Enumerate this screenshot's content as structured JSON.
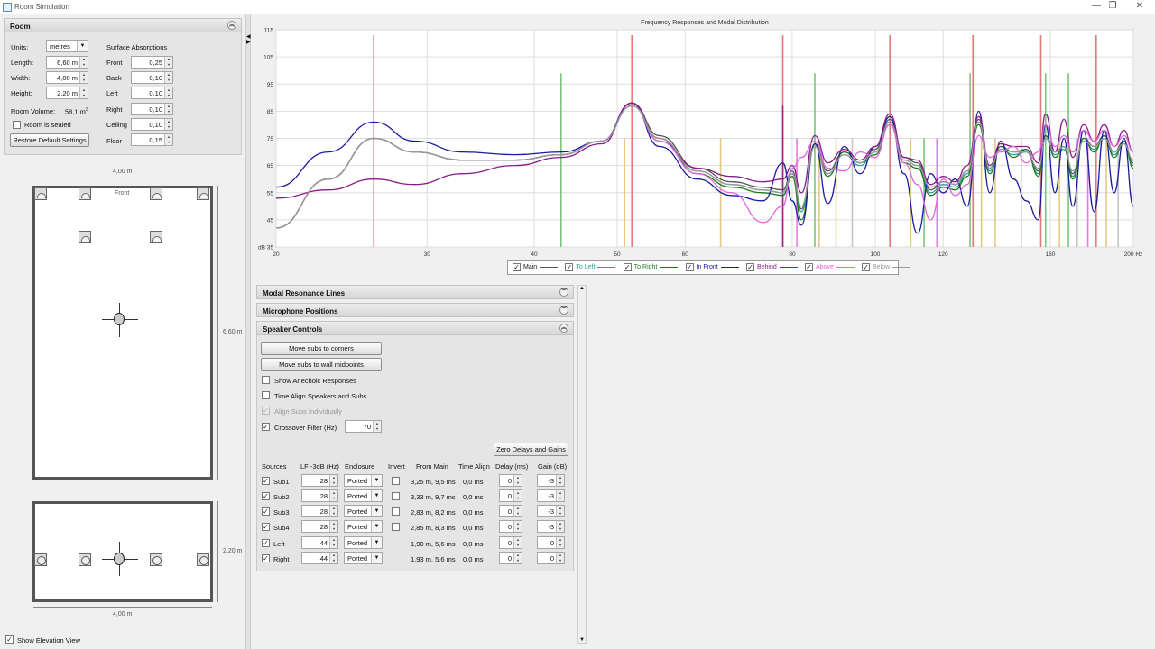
{
  "window": {
    "title": "Room Simulation",
    "controls": {
      "minimize": "—",
      "maximize": "❐",
      "close": "✕"
    }
  },
  "room_panel": {
    "title": "Room",
    "units_label": "Units:",
    "units_value": "metres",
    "length_label": "Length:",
    "length_value": "6,60 m",
    "width_label": "Width:",
    "width_value": "4,00 m",
    "height_label": "Height:",
    "height_value": "2,20 m",
    "volume_label": "Room Volume:",
    "volume_value": "58,1 m",
    "volume_unit_sup": "3",
    "sealed_label": "Room is sealed",
    "restore_button": "Restore Default Settings",
    "absorptions_title": "Surface Absorptions",
    "absorptions": [
      {
        "label": "Front",
        "value": "0,25"
      },
      {
        "label": "Back",
        "value": "0,10"
      },
      {
        "label": "Left",
        "value": "0,10"
      },
      {
        "label": "Right",
        "value": "0,10"
      },
      {
        "label": "Ceiling",
        "value": "0,10"
      },
      {
        "label": "Floor",
        "value": "0,15"
      }
    ]
  },
  "plan_view": {
    "width_label": "4,00 m",
    "length_label": "6,60 m",
    "front_label": "Front"
  },
  "elevation_view": {
    "height_label": "2,20 m",
    "width_label": "4,00 m"
  },
  "show_elevation": {
    "label": "Show Elevation View",
    "checked": true
  },
  "chart_data": {
    "type": "line",
    "title": "Frequency Responses and Modal Distribution",
    "x_scale": "log",
    "xlim": [
      20,
      200
    ],
    "ylim": [
      35,
      115
    ],
    "x_ticks": [
      "20",
      "30",
      "40",
      "50",
      "60",
      "80",
      "100",
      "120",
      "160",
      "200 Hz"
    ],
    "x_tick_values": [
      20,
      30,
      40,
      50,
      60,
      80,
      100,
      120,
      160,
      200
    ],
    "y_ticks": [
      "dB 35",
      "45",
      "55",
      "65",
      "75",
      "85",
      "95",
      "105",
      "115"
    ],
    "y_tick_values": [
      35,
      45,
      55,
      65,
      75,
      85,
      95,
      105,
      115
    ],
    "grid": true,
    "legend_placement": "bottom",
    "series": [
      {
        "name": "Main",
        "color": "#555555",
        "x": [
          20,
          23,
          26,
          29,
          33,
          38,
          43,
          48,
          52,
          56,
          62,
          68,
          74,
          78,
          80,
          82,
          85,
          88,
          92,
          96,
          100,
          104,
          108,
          112,
          116,
          120,
          124,
          128,
          132,
          136,
          140,
          145,
          150,
          155,
          158,
          162,
          166,
          170,
          175,
          180,
          185,
          190,
          195,
          200
        ],
        "y": [
          42,
          60,
          75,
          70,
          67,
          67,
          69,
          74,
          88,
          76,
          64,
          59,
          57,
          56,
          63,
          49,
          73,
          63,
          70,
          66,
          71,
          82,
          68,
          66,
          56,
          59,
          58,
          63,
          82,
          64,
          72,
          70,
          71,
          63,
          76,
          70,
          72,
          62,
          75,
          72,
          76,
          70,
          74,
          66
        ]
      },
      {
        "name": "To Left",
        "color": "#2aa198",
        "x": [
          20,
          23,
          26,
          29,
          33,
          38,
          43,
          48,
          52,
          56,
          62,
          68,
          74,
          78,
          80,
          82,
          85,
          88,
          92,
          96,
          100,
          104,
          108,
          112,
          116,
          120,
          124,
          128,
          132,
          136,
          140,
          145,
          150,
          155,
          158,
          162,
          166,
          170,
          175,
          180,
          185,
          190,
          195,
          200
        ],
        "y": [
          42,
          60,
          75,
          70,
          67,
          67,
          69,
          74,
          87,
          75,
          63,
          58,
          56,
          55,
          62,
          48,
          72,
          62,
          69,
          65,
          70,
          81,
          67,
          65,
          55,
          58,
          57,
          62,
          81,
          63,
          71,
          69,
          70,
          62,
          75,
          69,
          71,
          61,
          74,
          71,
          75,
          69,
          73,
          65
        ]
      },
      {
        "name": "To Right",
        "color": "#1f7a1f",
        "x": [
          20,
          23,
          26,
          29,
          33,
          38,
          43,
          48,
          52,
          56,
          62,
          68,
          74,
          78,
          80,
          82,
          85,
          88,
          92,
          96,
          100,
          104,
          108,
          112,
          116,
          120,
          124,
          128,
          132,
          136,
          140,
          145,
          150,
          155,
          158,
          162,
          166,
          170,
          175,
          180,
          185,
          190,
          195,
          200
        ],
        "y": [
          42,
          60,
          75,
          70,
          67,
          67,
          69,
          74,
          87,
          75,
          62,
          57,
          55,
          54,
          61,
          45,
          73,
          61,
          70,
          66,
          69,
          81,
          66,
          64,
          54,
          57,
          56,
          61,
          80,
          62,
          72,
          68,
          71,
          61,
          76,
          68,
          72,
          60,
          75,
          70,
          76,
          68,
          74,
          64
        ]
      },
      {
        "name": "In Front",
        "color": "#1a1aa0",
        "x": [
          20,
          23,
          26,
          29,
          33,
          38,
          43,
          48,
          52,
          56,
          62,
          68,
          74,
          78,
          80,
          82,
          85,
          88,
          92,
          96,
          100,
          104,
          108,
          112,
          116,
          120,
          124,
          128,
          132,
          136,
          140,
          145,
          150,
          155,
          158,
          162,
          166,
          170,
          175,
          180,
          185,
          190,
          195,
          200
        ],
        "y": [
          57,
          70,
          81,
          74,
          70,
          69,
          70,
          74,
          88,
          72,
          60,
          54,
          52,
          66,
          52,
          43,
          73,
          51,
          72,
          62,
          72,
          83,
          62,
          40,
          62,
          55,
          60,
          50,
          85,
          55,
          74,
          60,
          52,
          45,
          80,
          55,
          75,
          50,
          78,
          48,
          78,
          55,
          75,
          50
        ]
      },
      {
        "name": "Behind",
        "color": "#8b1a8b",
        "x": [
          20,
          23,
          26,
          29,
          33,
          38,
          43,
          48,
          52,
          56,
          62,
          68,
          74,
          78,
          80,
          82,
          85,
          88,
          92,
          96,
          100,
          104,
          108,
          112,
          116,
          120,
          124,
          128,
          132,
          136,
          140,
          145,
          150,
          155,
          158,
          162,
          166,
          170,
          175,
          180,
          185,
          190,
          195,
          200
        ],
        "y": [
          53,
          56,
          60,
          58,
          62,
          65,
          68,
          73,
          88,
          74,
          64,
          61,
          59,
          60,
          65,
          55,
          76,
          66,
          71,
          67,
          72,
          84,
          68,
          67,
          58,
          61,
          59,
          65,
          83,
          65,
          73,
          72,
          72,
          66,
          84,
          70,
          82,
          68,
          80,
          74,
          80,
          72,
          78,
          70
        ]
      },
      {
        "name": "Above",
        "color": "#e066e0",
        "x": [
          20,
          23,
          26,
          29,
          33,
          38,
          43,
          48,
          52,
          56,
          62,
          68,
          74,
          78,
          80,
          82,
          85,
          88,
          92,
          96,
          100,
          104,
          108,
          112,
          116,
          120,
          124,
          128,
          132,
          136,
          140,
          145,
          150,
          155,
          158,
          162,
          166,
          170,
          175,
          180,
          185,
          190,
          195,
          200
        ],
        "y": [
          42,
          60,
          75,
          70,
          67,
          67,
          69,
          74,
          87,
          74,
          62,
          55,
          44,
          50,
          64,
          68,
          74,
          64,
          63,
          70,
          68,
          80,
          66,
          58,
          45,
          60,
          54,
          58,
          76,
          68,
          70,
          72,
          66,
          70,
          80,
          72,
          76,
          70,
          78,
          74,
          78,
          72,
          76,
          70
        ]
      },
      {
        "name": "Below",
        "color": "#999999",
        "x": [
          20,
          23,
          26,
          29,
          33,
          38,
          43,
          48,
          52,
          56,
          62,
          68,
          74,
          78,
          80,
          82,
          85,
          88,
          92,
          96,
          100,
          104,
          108,
          112,
          116,
          120,
          124,
          128,
          132,
          136,
          140,
          145,
          150,
          155,
          158,
          162,
          166,
          170,
          175,
          180,
          185,
          190,
          195,
          200
        ],
        "y": [
          42,
          60,
          75,
          70,
          67,
          67,
          69,
          74,
          87,
          75,
          63,
          58,
          56,
          55,
          62,
          50,
          72,
          62,
          69,
          66,
          70,
          81,
          67,
          65,
          57,
          59,
          58,
          63,
          81,
          64,
          71,
          70,
          70,
          64,
          75,
          70,
          72,
          63,
          74,
          72,
          75,
          70,
          73,
          67
        ]
      }
    ],
    "modal_lines": [
      {
        "f": 26,
        "level": 113,
        "color": "#e06060"
      },
      {
        "f": 43,
        "level": 99,
        "color": "#66bb66"
      },
      {
        "f": 52,
        "level": 113,
        "color": "#e06060"
      },
      {
        "f": 51,
        "level": 75,
        "color": "#e0c070"
      },
      {
        "f": 66,
        "level": 75,
        "color": "#e0c070"
      },
      {
        "f": 78,
        "level": 113,
        "color": "#e06060"
      },
      {
        "f": 78,
        "level": 87,
        "color": "#8b1a8b"
      },
      {
        "f": 81,
        "level": 75,
        "color": "#e066e0"
      },
      {
        "f": 85,
        "level": 99,
        "color": "#66bb66"
      },
      {
        "f": 86,
        "level": 75,
        "color": "#e0c070"
      },
      {
        "f": 90,
        "level": 75,
        "color": "#e0c070"
      },
      {
        "f": 94,
        "level": 75,
        "color": "#bbbbbb"
      },
      {
        "f": 104,
        "level": 113,
        "color": "#e06060"
      },
      {
        "f": 110,
        "level": 75,
        "color": "#e0c070"
      },
      {
        "f": 114,
        "level": 75,
        "color": "#66bb66"
      },
      {
        "f": 118,
        "level": 75,
        "color": "#e066e0"
      },
      {
        "f": 129,
        "level": 99,
        "color": "#66bb66"
      },
      {
        "f": 130,
        "level": 113,
        "color": "#e06060"
      },
      {
        "f": 133,
        "level": 75,
        "color": "#e0c070"
      },
      {
        "f": 138,
        "level": 75,
        "color": "#e0c070"
      },
      {
        "f": 148,
        "level": 75,
        "color": "#bbbbbb"
      },
      {
        "f": 156,
        "level": 113,
        "color": "#e06060"
      },
      {
        "f": 158,
        "level": 99,
        "color": "#66bb66"
      },
      {
        "f": 164,
        "level": 75,
        "color": "#e0c070"
      },
      {
        "f": 168,
        "level": 99,
        "color": "#66bb66"
      },
      {
        "f": 172,
        "level": 75,
        "color": "#bbbbbb"
      },
      {
        "f": 177,
        "level": 75,
        "color": "#e066e0"
      },
      {
        "f": 181,
        "level": 113,
        "color": "#e06060"
      },
      {
        "f": 186,
        "level": 75,
        "color": "#e0c070"
      },
      {
        "f": 192,
        "level": 75,
        "color": "#bbbbbb"
      }
    ]
  },
  "legend": [
    {
      "name": "Main",
      "color": "#555555",
      "checked": true
    },
    {
      "name": "To Left",
      "color": "#2aa198",
      "checked": true
    },
    {
      "name": "To Right",
      "color": "#1f7a1f",
      "checked": true
    },
    {
      "name": "In Front",
      "color": "#1a1aa0",
      "checked": true
    },
    {
      "name": "Behind",
      "color": "#8b1a8b",
      "checked": true
    },
    {
      "name": "Above",
      "color": "#e066e0",
      "checked": true
    },
    {
      "name": "Below",
      "color": "#999999",
      "checked": true
    }
  ],
  "sections": {
    "modal": "Modal Resonance Lines",
    "mic": "Microphone Positions",
    "speaker": "Speaker Controls"
  },
  "speaker_controls": {
    "move_corners": "Move subs to corners",
    "move_midpoints": "Move subs to wall midpoints",
    "show_anechoic": "Show Anechoic Responses",
    "time_align": "Time Align Speakers and Subs",
    "align_individually": "Align Subs Individually",
    "crossover_label": "Crossover Filter (Hz)",
    "crossover_value": "70",
    "zero_button": "Zero Delays and Gains",
    "headers": [
      "Sources",
      "LF -3dB (Hz)",
      "Enclosure",
      "Invert",
      "From Main",
      "Time Align",
      "Delay (ms)",
      "Gain (dB)"
    ],
    "rows": [
      {
        "name": "Sub1",
        "lf": "28",
        "enclosure": "Ported",
        "invert": true,
        "from_main": "3,25 m, 9,5 ms",
        "time_align": "0,0 ms",
        "delay": "0",
        "gain": "-3"
      },
      {
        "name": "Sub2",
        "lf": "28",
        "enclosure": "Ported",
        "invert": true,
        "from_main": "3,33 m, 9,7 ms",
        "time_align": "0,0 ms",
        "delay": "0",
        "gain": "-3"
      },
      {
        "name": "Sub3",
        "lf": "28",
        "enclosure": "Ported",
        "invert": true,
        "from_main": "2,83 m, 8,2 ms",
        "time_align": "0,0 ms",
        "delay": "0",
        "gain": "-3"
      },
      {
        "name": "Sub4",
        "lf": "28",
        "enclosure": "Ported",
        "invert": true,
        "from_main": "2,85 m, 8,3 ms",
        "time_align": "0,0 ms",
        "delay": "0",
        "gain": "-3"
      },
      {
        "name": "Left",
        "lf": "44",
        "enclosure": "Ported",
        "invert": false,
        "from_main": "1,90 m, 5,6 ms",
        "time_align": "0,0 ms",
        "delay": "0",
        "gain": "0"
      },
      {
        "name": "Right",
        "lf": "44",
        "enclosure": "Ported",
        "invert": false,
        "from_main": "1,93 m, 5,6 ms",
        "time_align": "0,0 ms",
        "delay": "0",
        "gain": "0"
      }
    ]
  }
}
